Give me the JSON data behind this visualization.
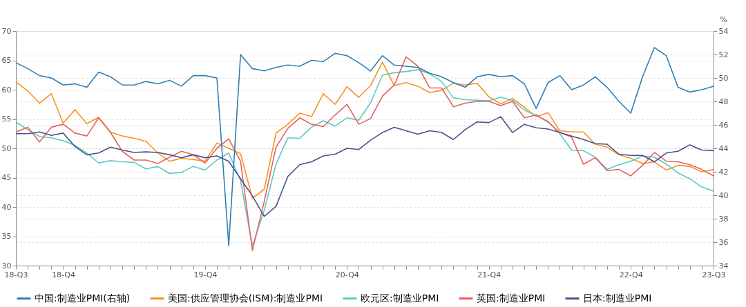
{
  "chart_data": {
    "type": "line",
    "categories": [
      "18-Q3",
      null,
      null,
      null,
      "18-Q4",
      null,
      null,
      null,
      null,
      null,
      null,
      null,
      null,
      null,
      null,
      null,
      "19-Q4",
      null,
      null,
      null,
      null,
      null,
      null,
      null,
      null,
      null,
      null,
      null,
      "20-Q4",
      null,
      null,
      null,
      null,
      null,
      null,
      null,
      null,
      null,
      null,
      null,
      "21-Q4",
      null,
      null,
      null,
      null,
      null,
      null,
      null,
      null,
      null,
      null,
      null,
      "22-Q4",
      null,
      null,
      null,
      null,
      null,
      null,
      "23-Q3"
    ],
    "series": [
      {
        "name": "中国:制造业PMI(右轴)",
        "color": "#2f7fb3",
        "axis": "y2",
        "values": [
          51.3,
          50.8,
          50.2,
          50.0,
          49.4,
          49.5,
          49.2,
          50.5,
          50.1,
          49.4,
          49.4,
          49.7,
          49.5,
          49.8,
          49.3,
          50.2,
          50.2,
          50.0,
          35.7,
          52.0,
          50.8,
          50.6,
          50.9,
          51.1,
          51.0,
          51.5,
          51.4,
          52.1,
          51.9,
          51.3,
          50.6,
          51.9,
          51.1,
          51.0,
          50.9,
          50.4,
          50.1,
          49.6,
          49.2,
          50.1,
          50.3,
          50.1,
          50.2,
          49.5,
          47.4,
          49.6,
          50.2,
          49.0,
          49.4,
          50.1,
          49.2,
          48.0,
          47.0,
          50.1,
          52.6,
          51.9,
          49.2,
          48.8,
          49.0,
          49.3
        ]
      },
      {
        "name": "美国:供应管理协会(ISM):制造业PMI",
        "color": "#f7931e",
        "values": [
          61.3,
          59.8,
          57.7,
          59.3,
          54.3,
          56.6,
          54.2,
          55.3,
          52.8,
          52.1,
          51.7,
          51.2,
          49.2,
          47.8,
          48.3,
          48.1,
          47.8,
          50.9,
          50.0,
          49.1,
          41.5,
          43.0,
          52.6,
          54.1,
          56.0,
          55.4,
          59.3,
          57.5,
          60.5,
          58.7,
          60.7,
          64.7,
          60.7,
          61.2,
          60.6,
          59.5,
          59.9,
          61.1,
          60.8,
          61.1,
          58.8,
          57.6,
          58.5,
          57.0,
          55.4,
          56.1,
          53.0,
          52.8,
          52.8,
          50.7,
          50.2,
          48.9,
          48.3,
          47.4,
          47.7,
          46.3,
          47.1,
          46.9,
          46.0,
          46.4
        ]
      },
      {
        "name": "欧元区:制造业PMI",
        "color": "#5cc8c4",
        "values": [
          54.5,
          53.2,
          52.0,
          51.8,
          51.3,
          50.5,
          49.2,
          47.5,
          47.9,
          47.7,
          47.6,
          46.5,
          46.9,
          45.7,
          45.9,
          46.9,
          46.3,
          48.0,
          49.2,
          44.5,
          33.3,
          39.4,
          47.3,
          51.8,
          51.7,
          53.6,
          54.7,
          53.8,
          55.2,
          54.8,
          57.8,
          62.5,
          62.9,
          63.1,
          63.4,
          62.7,
          61.4,
          58.6,
          58.3,
          58.2,
          58.1,
          58.7,
          58.2,
          56.5,
          55.6,
          54.6,
          52.5,
          49.7,
          49.6,
          48.5,
          46.4,
          47.2,
          47.8,
          48.7,
          48.5,
          47.3,
          45.8,
          44.8,
          43.4,
          42.7
        ]
      },
      {
        "name": "英国:制造业PMI",
        "color": "#e8605e",
        "values": [
          52.8,
          53.6,
          51.1,
          53.6,
          54.1,
          52.6,
          52.1,
          55.2,
          52.7,
          49.5,
          48.0,
          48.0,
          47.4,
          48.5,
          49.5,
          48.9,
          47.5,
          50.0,
          51.6,
          47.8,
          32.6,
          40.9,
          50.2,
          53.4,
          55.2,
          54.1,
          53.7,
          55.7,
          57.5,
          54.1,
          55.1,
          58.9,
          60.8,
          65.6,
          64.0,
          60.3,
          60.3,
          57.1,
          57.7,
          58.0,
          58.0,
          57.3,
          58.0,
          55.2,
          55.7,
          54.5,
          52.7,
          51.9,
          47.3,
          48.4,
          46.2,
          46.4,
          45.3,
          47.1,
          49.3,
          47.8,
          47.7,
          47.2,
          46.4,
          45.3
        ]
      },
      {
        "name": "日本:制造业PMI",
        "color": "#4d4f8f",
        "values": [
          52.5,
          52.5,
          52.8,
          52.2,
          52.6,
          50.3,
          48.9,
          49.2,
          50.2,
          49.7,
          49.3,
          49.4,
          49.3,
          48.9,
          48.4,
          48.9,
          48.4,
          48.7,
          47.8,
          44.8,
          41.9,
          38.4,
          40.1,
          45.2,
          47.2,
          47.7,
          48.7,
          49.0,
          50.0,
          49.8,
          51.4,
          52.7,
          53.6,
          53.0,
          52.4,
          53.0,
          52.7,
          51.5,
          53.2,
          54.5,
          54.4,
          55.4,
          52.7,
          54.1,
          53.5,
          53.3,
          52.7,
          52.1,
          51.5,
          50.8,
          50.7,
          49.0,
          48.8,
          48.8,
          47.7,
          49.2,
          49.5,
          50.6,
          49.7,
          49.6
        ]
      }
    ],
    "ylim": [
      30,
      70
    ],
    "yticks": [
      30,
      35,
      40,
      45,
      50,
      55,
      60,
      65,
      70
    ],
    "y2lim": [
      34,
      54
    ],
    "y2ticks": [
      34,
      36,
      38,
      40,
      42,
      44,
      46,
      48,
      50,
      52,
      54
    ],
    "y2label": "%",
    "grid": "y",
    "legend": "bottom",
    "line_style": "solid"
  }
}
